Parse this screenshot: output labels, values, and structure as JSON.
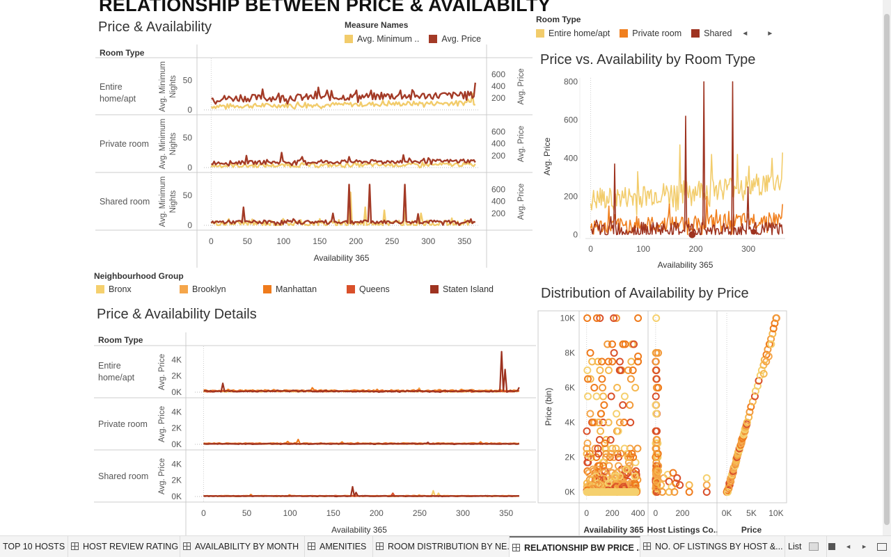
{
  "page_title": "RELATIONSHIP BETWEEN PRICE & AVAILABILTY",
  "colors": {
    "entire": "#f2cc6b",
    "private": "#f07f1e",
    "shared": "#9e3320",
    "bronx": "#f5d06e",
    "brooklyn": "#f5a64a",
    "manhattan": "#ef7b1c",
    "queens": "#d9502a",
    "staten": "#9e3320"
  },
  "measure_legend": {
    "title": "Measure Names",
    "items": [
      {
        "label": "Avg. Minimum ..",
        "color": "#f2cc6b"
      },
      {
        "label": "Avg. Price",
        "color": "#a33a26"
      }
    ]
  },
  "roomtype_legend": {
    "title": "Room Type",
    "items": [
      {
        "label": "Entire home/apt",
        "color": "#f2cc6b"
      },
      {
        "label": "Private room",
        "color": "#f07f1e"
      },
      {
        "label": "Shared",
        "color": "#9e3320"
      }
    ],
    "prev": "◄",
    "next": "►"
  },
  "neigh_legend": {
    "title": "Neighbourhood Group",
    "items": [
      {
        "label": "Bronx",
        "color": "#f5d06e"
      },
      {
        "label": "Brooklyn",
        "color": "#f5a64a"
      },
      {
        "label": "Manhattan",
        "color": "#ef7b1c"
      },
      {
        "label": "Queens",
        "color": "#d9502a"
      },
      {
        "label": "Staten Island",
        "color": "#9e3320"
      }
    ]
  },
  "tabs": [
    {
      "label": "TOP 10 HOSTS",
      "icon": false,
      "active": false
    },
    {
      "label": "HOST REVIEW RATING",
      "icon": true,
      "active": false
    },
    {
      "label": "AVAILABILITY BY MONTH",
      "icon": true,
      "active": false
    },
    {
      "label": "AMENITIES",
      "icon": true,
      "active": false
    },
    {
      "label": "ROOM DISTRIBUTION BY NE...",
      "icon": true,
      "active": false
    },
    {
      "label": "RELATIONSHIP BW PRICE ...",
      "icon": true,
      "active": true
    },
    {
      "label": "NO. OF LISTINGS BY HOST &...",
      "icon": true,
      "active": false
    },
    {
      "label": "List",
      "icon": false,
      "active": false
    }
  ],
  "chart_data": [
    {
      "id": "price-availability",
      "type": "line",
      "title": "Price & Availability",
      "row_header": "Room Type",
      "xlabel": "Availability 365",
      "xlim": [
        -10,
        370
      ],
      "xticks": [
        0,
        50,
        100,
        150,
        200,
        250,
        300,
        350
      ],
      "left_axis": {
        "label": "Avg. Minimum Nights",
        "ticks": [
          0,
          50
        ],
        "lim": [
          0,
          80
        ]
      },
      "right_axis": {
        "label": "Avg. Price",
        "ticks": [
          200,
          400,
          600
        ],
        "lim": [
          0,
          800
        ]
      },
      "rows": [
        {
          "label": "Entire home/apt",
          "series": [
            {
              "name": "Avg. Minimum ..",
              "axis": "left",
              "base": 6,
              "amp": 4,
              "trend": 6,
              "spikes": [
                [
                  360,
                  28
                ],
                [
                  355,
                  18
                ]
              ]
            },
            {
              "name": "Avg. Price",
              "axis": "right",
              "base": 190,
              "amp": 60,
              "trend": 60,
              "spikes": [
                [
                  70,
                  350
                ],
                [
                  148,
                  380
                ],
                [
                  160,
                  330
                ],
                [
                  200,
                  330
                ],
                [
                  262,
                  330
                ],
                [
                  345,
                  300
                ],
                [
                  365,
                  460
                ]
              ]
            }
          ]
        },
        {
          "label": "Private room",
          "series": [
            {
              "name": "Avg. Minimum ..",
              "axis": "left",
              "base": 3,
              "amp": 3,
              "trend": 2,
              "spikes": []
            },
            {
              "name": "Avg. Price",
              "axis": "right",
              "base": 80,
              "amp": 30,
              "trend": 30,
              "spikes": [
                [
                  48,
                  200
                ],
                [
                  98,
                  250
                ],
                [
                  125,
                  180
                ],
                [
                  190,
                  180
                ],
                [
                  265,
                  210
                ],
                [
                  300,
                  160
                ]
              ]
            }
          ]
        },
        {
          "label": "Shared room",
          "series": [
            {
              "name": "Avg. Minimum ..",
              "axis": "left",
              "base": 3,
              "amp": 5,
              "trend": 0,
              "spikes": [
                [
                  193,
                  55
                ],
                [
                  212,
                  30
                ],
                [
                  240,
                  25
                ],
                [
                  268,
                  25
                ],
                [
                  290,
                  20
                ]
              ]
            },
            {
              "name": "Avg. Price",
              "axis": "right",
              "base": 55,
              "amp": 30,
              "trend": 0,
              "spikes": [
                [
                  45,
                  300
                ],
                [
                  168,
                  200
                ],
                [
                  190,
                  680
                ],
                [
                  220,
                  680
                ],
                [
                  268,
                  680
                ],
                [
                  285,
                  190
                ]
              ]
            }
          ]
        }
      ]
    },
    {
      "id": "price-vs-availability",
      "type": "line",
      "title": "Price vs. Availability by Room Type",
      "xlabel": "Availability 365",
      "ylabel": "Avg. Price",
      "xlim": [
        -10,
        370
      ],
      "ylim": [
        -20,
        820
      ],
      "xticks": [
        0,
        100,
        200,
        300
      ],
      "yticks": [
        0,
        200,
        400,
        600,
        800
      ],
      "series": [
        {
          "name": "Entire home/apt",
          "base": 175,
          "amp": 60,
          "trend": 100,
          "spikes": [
            [
              90,
              330
            ],
            [
              170,
              470
            ],
            [
              230,
              420
            ],
            [
              280,
              420
            ],
            [
              345,
              400
            ],
            [
              365,
              430
            ]
          ]
        },
        {
          "name": "Private room",
          "base": 40,
          "amp": 40,
          "trend": 40,
          "spikes": [
            [
              35,
              150
            ],
            [
              150,
              160
            ],
            [
              220,
              200
            ],
            [
              365,
              160
            ]
          ]
        },
        {
          "name": "Shared",
          "base": 25,
          "amp": 40,
          "trend": 0,
          "spikes": [
            [
              45,
              370
            ],
            [
              180,
              620
            ],
            [
              215,
              800
            ],
            [
              270,
              800
            ],
            [
              300,
              250
            ]
          ]
        }
      ]
    },
    {
      "id": "price-availability-details",
      "type": "line",
      "title": "Price & Availability Details",
      "row_header": "Room Type",
      "xlabel": "Availability 365",
      "ylabel": "Avg. Price",
      "xlim": [
        -10,
        370
      ],
      "ylim": [
        -300,
        5300
      ],
      "xticks": [
        0,
        50,
        100,
        150,
        200,
        250,
        300,
        350
      ],
      "yticks": [
        0,
        2000,
        4000
      ],
      "ytick_labels": [
        "0K",
        "2K",
        "4K"
      ],
      "rows": [
        {
          "label": "Entire home/apt",
          "series": [
            {
              "name": "Bronx",
              "base": 100,
              "amp": 60,
              "spikes": []
            },
            {
              "name": "Brooklyn",
              "base": 150,
              "amp": 80,
              "spikes": [
                [
                  250,
                  500
                ]
              ]
            },
            {
              "name": "Manhattan",
              "base": 200,
              "amp": 90,
              "spikes": [
                [
                  125,
                  550
                ],
                [
                  200,
                  350
                ],
                [
                  310,
                  300
                ]
              ]
            },
            {
              "name": "Queens",
              "base": 120,
              "amp": 60,
              "spikes": []
            },
            {
              "name": "Staten Island",
              "base": 120,
              "amp": 80,
              "spikes": [
                [
                  23,
                  1100
                ],
                [
                  345,
                  5000
                ],
                [
                  348,
                  2800
                ],
                [
                  365,
                  600
                ]
              ]
            }
          ]
        },
        {
          "label": "Private room",
          "series": [
            {
              "name": "Bronx",
              "base": 60,
              "amp": 30,
              "spikes": []
            },
            {
              "name": "Brooklyn",
              "base": 80,
              "amp": 40,
              "spikes": []
            },
            {
              "name": "Manhattan",
              "base": 120,
              "amp": 50,
              "spikes": [
                [
                  97,
                  350
                ],
                [
                  110,
                  600
                ],
                [
                  160,
                  300
                ],
                [
                  320,
                  300
                ]
              ]
            },
            {
              "name": "Queens",
              "base": 70,
              "amp": 30,
              "spikes": []
            },
            {
              "name": "Staten Island",
              "base": 60,
              "amp": 40,
              "spikes": [
                [
                  260,
                  250
                ]
              ]
            }
          ]
        },
        {
          "label": "Shared room",
          "series": [
            {
              "name": "Bronx",
              "base": 50,
              "amp": 30,
              "spikes": [
                [
                  265,
                  700
                ],
                [
                  272,
                  400
                ]
              ]
            },
            {
              "name": "Brooklyn",
              "base": 60,
              "amp": 30,
              "spikes": [
                [
                  250,
                  200
                ]
              ]
            },
            {
              "name": "Manhattan",
              "base": 70,
              "amp": 30,
              "spikes": [
                [
                  55,
                  250
                ],
                [
                  100,
                  200
                ]
              ]
            },
            {
              "name": "Queens",
              "base": 60,
              "amp": 30,
              "spikes": [
                [
                  220,
                  400
                ]
              ]
            },
            {
              "name": "Staten Island",
              "base": 50,
              "amp": 30,
              "spikes": [
                [
                  173,
                  1200
                ],
                [
                  176,
                  500
                ]
              ]
            }
          ]
        }
      ]
    },
    {
      "id": "distribution-availability-price",
      "type": "scatter",
      "title": "Distribution of Availability by Price",
      "ylabel": "Price (bin)",
      "ylim": [
        -500,
        10300
      ],
      "yticks": [
        0,
        2000,
        4000,
        6000,
        8000,
        10000
      ],
      "ytick_labels": [
        "0K",
        "2K",
        "4K",
        "6K",
        "8K",
        "10K"
      ],
      "panels": [
        {
          "label": "Availability 365",
          "xlim": [
            -20,
            440
          ],
          "xticks": [
            0,
            200,
            400
          ],
          "xtick_labels": [
            "0",
            "200",
            "400"
          ]
        },
        {
          "label": "Host Listings Co..",
          "xlim": [
            -20,
            420
          ],
          "xticks": [
            0,
            200
          ],
          "xtick_labels": [
            "0",
            "200"
          ]
        },
        {
          "label": "Price",
          "xlim": [
            -1000,
            11000
          ],
          "xticks": [
            0,
            5000,
            10000
          ],
          "xtick_labels": [
            "0K",
            "5K",
            "10K"
          ]
        }
      ]
    }
  ]
}
